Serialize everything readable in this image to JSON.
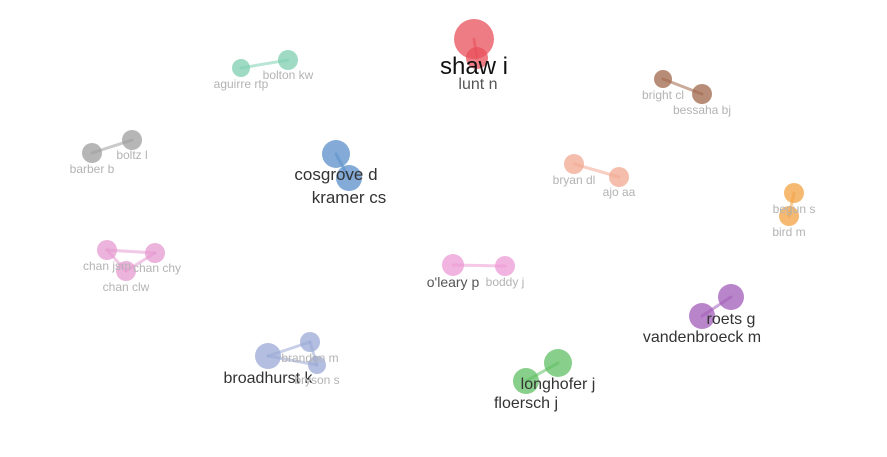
{
  "network": {
    "clusters": [
      {
        "color": "#e8505b",
        "nodes": [
          {
            "label": "shaw i",
            "weight": 3
          },
          {
            "label": "lunt n",
            "weight": 2
          }
        ]
      },
      {
        "color": "#7fcfb0",
        "nodes": [
          {
            "label": "aguirre rtp",
            "weight": 1
          },
          {
            "label": "bolton kw",
            "weight": 1
          }
        ]
      },
      {
        "color": "#a0674b",
        "nodes": [
          {
            "label": "bright cl",
            "weight": 1
          },
          {
            "label": "bessaha bj",
            "weight": 1
          }
        ]
      },
      {
        "color": "#9e9e9e",
        "nodes": [
          {
            "label": "barber b",
            "weight": 1
          },
          {
            "label": "boltz l",
            "weight": 1
          }
        ]
      },
      {
        "color": "#5b8fc9",
        "nodes": [
          {
            "label": "cosgrove d",
            "weight": 2
          },
          {
            "label": "kramer cs",
            "weight": 2
          }
        ]
      },
      {
        "color": "#f2a890",
        "nodes": [
          {
            "label": "bryan dl",
            "weight": 1
          },
          {
            "label": "ajo aa",
            "weight": 1
          }
        ]
      },
      {
        "color": "#f3a142",
        "nodes": [
          {
            "label": "begun s",
            "weight": 1
          },
          {
            "label": "bird m",
            "weight": 1
          }
        ]
      },
      {
        "color": "#e59ad0",
        "nodes": [
          {
            "label": "chan jsm",
            "weight": 1
          },
          {
            "label": "chan chy",
            "weight": 1
          },
          {
            "label": "chan clw",
            "weight": 1
          }
        ]
      },
      {
        "color": "#ec9ad4",
        "nodes": [
          {
            "label": "o'leary p",
            "weight": 1
          },
          {
            "label": "boddy j",
            "weight": 1
          }
        ]
      },
      {
        "color": "#a25cb8",
        "nodes": [
          {
            "label": "roets g",
            "weight": 2
          },
          {
            "label": "vandenbroeck m",
            "weight": 2
          }
        ]
      },
      {
        "color": "#9aa8d6",
        "nodes": [
          {
            "label": "broadhurst k",
            "weight": 2
          },
          {
            "label": "brandon m",
            "weight": 1
          },
          {
            "label": "bryson s",
            "weight": 1
          }
        ]
      },
      {
        "color": "#5fbf63",
        "nodes": [
          {
            "label": "longhofer j",
            "weight": 2
          },
          {
            "label": "floersch j",
            "weight": 2
          }
        ]
      }
    ]
  }
}
